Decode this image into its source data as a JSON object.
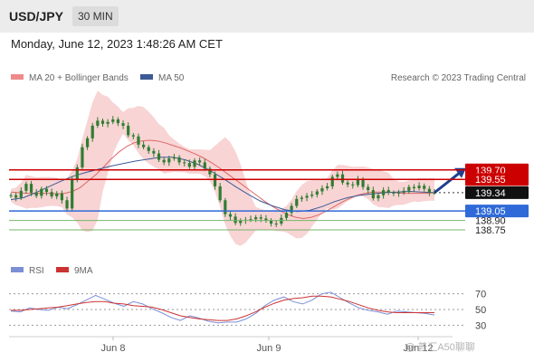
{
  "header": {
    "symbol": "USD/JPY",
    "timeframe": "30 MIN"
  },
  "datetime": "Monday, June 12, 2023 1:48:26 AM CET",
  "legend": {
    "ma20_label": "MA 20 + Bollinger Bands",
    "ma50_label": "MA 50",
    "copyright": "Research © 2023 Trading Central",
    "rsi_label": "RSI",
    "ma9_label": "9MA"
  },
  "watermark": "@ 普汇A50聊聊",
  "colors": {
    "candle": "#2f7d32",
    "band_fill": "#f4b8b8",
    "ma20": "#e06666",
    "ma50": "#3c5a96",
    "resistance": "#cc0000",
    "support_blue": "#2f6ad8",
    "support_green": "#76b56a",
    "rsi": "#7b8fd6",
    "rsi_ma": "#cc3333",
    "arrow": "#1f3f8f"
  },
  "chart_data": {
    "type": "line",
    "instrument": "USD/JPY",
    "interval": "30 MIN",
    "x_ticks": [
      "Jun 8",
      "Jun 9",
      "Jun 12"
    ],
    "levels": [
      {
        "value": 139.7,
        "label": "139.70",
        "kind": "resistance"
      },
      {
        "value": 139.55,
        "label": "139.55",
        "kind": "resistance"
      },
      {
        "value": 139.34,
        "label": "139.34",
        "kind": "last"
      },
      {
        "value": 139.05,
        "label": "139.05",
        "kind": "support_main"
      },
      {
        "value": 138.9,
        "label": "138.90",
        "kind": "support"
      },
      {
        "value": 138.75,
        "label": "138.75",
        "kind": "support"
      }
    ],
    "series": [
      {
        "name": "USD/JPY",
        "values": [
          139.3,
          139.26,
          139.37,
          139.48,
          139.34,
          139.29,
          139.4,
          139.35,
          139.28,
          139.33,
          139.22,
          139.09,
          139.56,
          139.74,
          140.06,
          140.2,
          140.4,
          140.48,
          140.43,
          140.46,
          140.5,
          140.44,
          140.4,
          140.25,
          140.23,
          140.1,
          140.06,
          140.0,
          139.96,
          139.86,
          139.82,
          139.88,
          139.9,
          139.82,
          139.81,
          139.75,
          139.85,
          139.82,
          139.72,
          139.63,
          139.44,
          139.22,
          139.0,
          138.96,
          138.86,
          138.9,
          138.91,
          138.92,
          138.95,
          138.93,
          138.9,
          138.85,
          138.85,
          138.94,
          139.02,
          139.13,
          139.24,
          139.26,
          139.29,
          139.31,
          139.36,
          139.41,
          139.44,
          139.59,
          139.63,
          139.5,
          139.47,
          139.46,
          139.55,
          139.43,
          139.38,
          139.25,
          139.3,
          139.38,
          139.34,
          139.33,
          139.34,
          139.37,
          139.43,
          139.41,
          139.45,
          139.4,
          139.34,
          139.34
        ]
      },
      {
        "name": "MA 20",
        "values": [
          139.35,
          139.34,
          139.33,
          139.33,
          139.33,
          139.33,
          139.32,
          139.33,
          139.36,
          139.42,
          139.52,
          139.62,
          139.74,
          139.87,
          139.98,
          140.07,
          140.13,
          140.16,
          140.17,
          140.16,
          140.13,
          140.09,
          140.05,
          140.0,
          139.95,
          139.89,
          139.82,
          139.74,
          139.65,
          139.56,
          139.47,
          139.38,
          139.29,
          139.2,
          139.12,
          139.05,
          138.99,
          138.95,
          138.93,
          138.95,
          138.99,
          139.05,
          139.12,
          139.19,
          139.25,
          139.3,
          139.33,
          139.35,
          139.35,
          139.35,
          139.34,
          139.33,
          139.33,
          139.33,
          139.33,
          139.34
        ]
      },
      {
        "name": "MA 50",
        "values": [
          139.23,
          139.26,
          139.34,
          139.43,
          139.52,
          139.6,
          139.66,
          139.71,
          139.76,
          139.8,
          139.84,
          139.87,
          139.9,
          139.9,
          139.86,
          139.79,
          139.69,
          139.57,
          139.44,
          139.32,
          139.21,
          139.13,
          139.07,
          139.04,
          139.06,
          139.12,
          139.2,
          139.26,
          139.3,
          139.32,
          139.34,
          139.35,
          139.36,
          139.35,
          139.34
        ]
      },
      {
        "name": "RSI",
        "values": [
          48,
          47,
          52,
          50,
          49,
          53,
          51,
          56,
          62,
          68,
          63,
          58,
          54,
          60,
          57,
          51,
          46,
          40,
          36,
          42,
          39,
          35,
          33,
          34,
          34,
          38,
          45,
          55,
          62,
          66,
          60,
          57,
          62,
          70,
          72,
          65,
          58,
          52,
          49,
          47,
          44,
          48,
          47,
          46,
          45,
          43
        ]
      },
      {
        "name": "9MA",
        "values": [
          49,
          49,
          50,
          51,
          52,
          53,
          55,
          57,
          59,
          60,
          60,
          58,
          57,
          55,
          54,
          53,
          50,
          46,
          42,
          40,
          38,
          37,
          36,
          36,
          38,
          42,
          47,
          53,
          58,
          62,
          64,
          65,
          67,
          67,
          66,
          63,
          60,
          56,
          52,
          49,
          47,
          46,
          46,
          46,
          46,
          46
        ]
      }
    ],
    "price_ylim": [
      138.55,
      140.7
    ],
    "rsi_ylim": [
      20,
      80
    ],
    "rsi_levels": [
      70,
      50,
      30
    ],
    "rsi_level_labels": [
      "70",
      "50",
      "30"
    ]
  }
}
